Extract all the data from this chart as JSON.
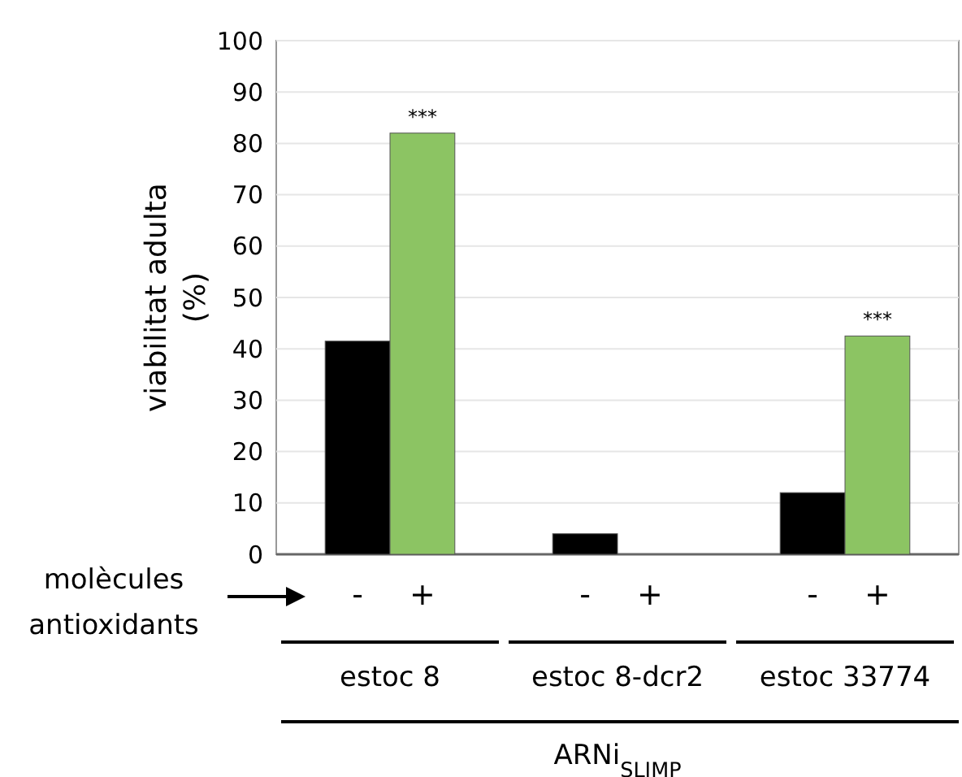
{
  "chart_data": {
    "type": "bar",
    "ylabel": "viabilitat adulta (%)",
    "categories": [
      "estoc 8",
      "estoc 8-dcr2",
      "estoc 33774"
    ],
    "series": [
      {
        "color": "#000000",
        "values": [
          41.5,
          4,
          12
        ]
      },
      {
        "color": "#8cc463",
        "values": [
          82,
          0,
          42.5
        ]
      }
    ],
    "ylim": [
      0,
      100
    ],
    "yticks": [
      0,
      10,
      20,
      30,
      40,
      50,
      60,
      70,
      80,
      90,
      100
    ],
    "grid": "y",
    "annotations": [
      {
        "text": "***",
        "x": "estoc 8",
        "y": 82
      },
      {
        "text": "***",
        "x": "estoc 33774",
        "y": 42.5
      },
      "molècules antioxidants",
      "-",
      "+",
      "-",
      "+",
      "-",
      "+",
      "ARNi$_{SLIMP}$"
    ]
  }
}
